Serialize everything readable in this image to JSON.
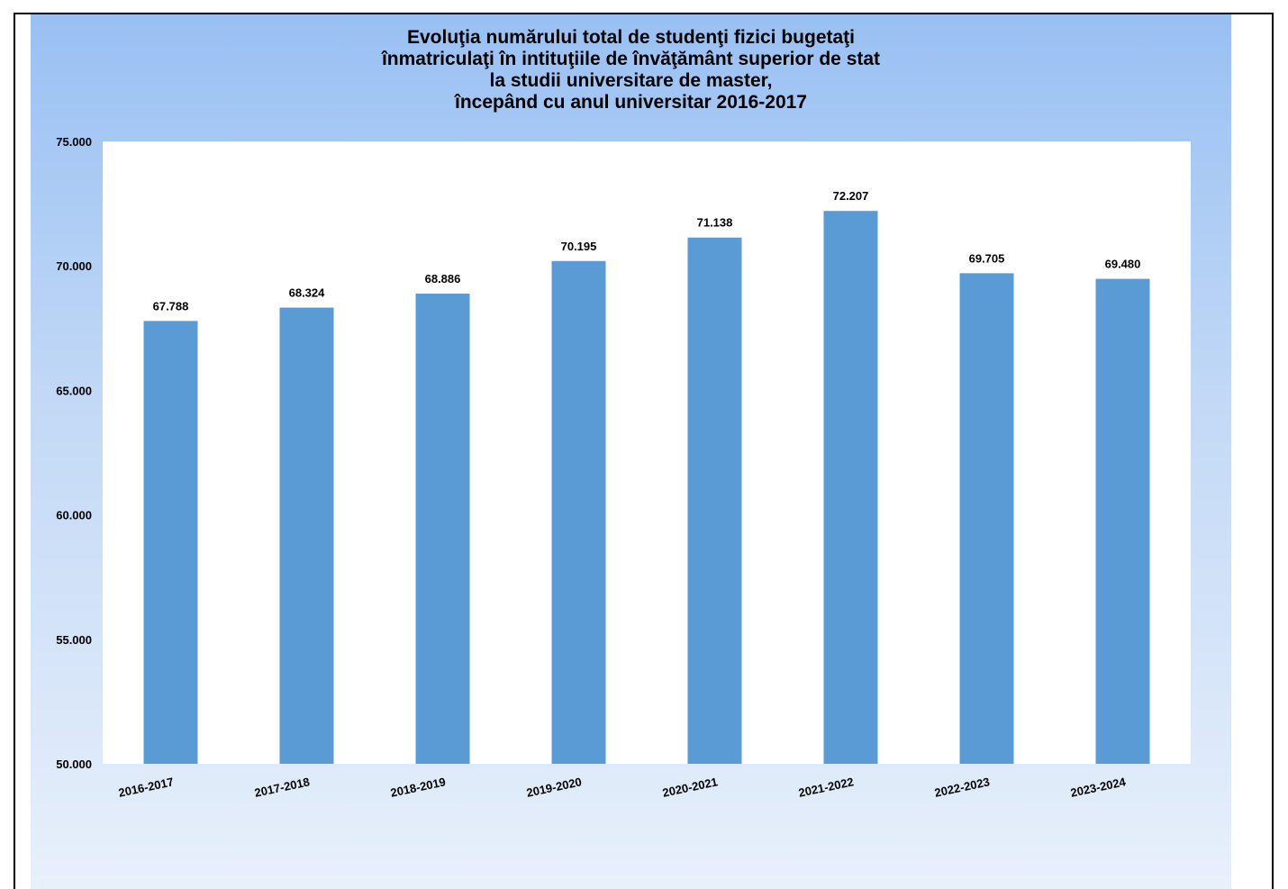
{
  "colors": {
    "bar": "#5b9bd5",
    "plot_background": "#ffffff"
  },
  "chart_data": {
    "type": "bar",
    "title": "Evoluţia numărului total de studenţi fizici bugetaţi\nînmatriculaţi în intituţiile de învăţământ superior de stat\nla studii universitare de master,\nîncepând cu anul universitar 2016-2017",
    "categories": [
      "2016-2017",
      "2017-2018",
      "2018-2019",
      "2019-2020",
      "2020-2021",
      "2021-2022",
      "2022-2023",
      "2023-2024"
    ],
    "values": [
      67788,
      68324,
      68886,
      70195,
      71138,
      72207,
      69705,
      69480
    ],
    "value_labels": [
      "67.788",
      "68.324",
      "68.886",
      "70.195",
      "71.138",
      "72.207",
      "69.705",
      "69.480"
    ],
    "ylim": [
      50000,
      75000
    ],
    "yticks": [
      50000,
      55000,
      60000,
      65000,
      70000,
      75000
    ],
    "ytick_labels": [
      "50.000",
      "55.000",
      "60.000",
      "65.000",
      "70.000",
      "75.000"
    ],
    "grid": false,
    "legend": "none"
  }
}
